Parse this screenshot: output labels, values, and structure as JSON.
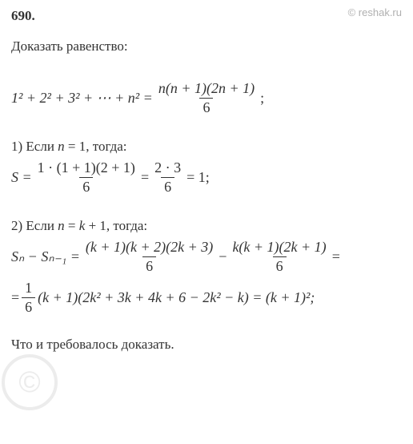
{
  "problem_number": "690.",
  "watermark": "© reshak.ru",
  "task": "Доказать равенство:",
  "main_formula": {
    "lhs": "1² + 2² + 3² + ⋯ + n² =",
    "rhs_num": "n(n + 1)(2n + 1)",
    "rhs_den": "6",
    "trail": ";"
  },
  "step1": {
    "label": "1) Если n = 1, тогда:",
    "prefix": "S =",
    "frac1_num": "1 · (1 + 1)(2 + 1)",
    "frac1_den": "6",
    "mid": "=",
    "frac2_num": "2 · 3",
    "frac2_den": "6",
    "trail": "= 1;"
  },
  "step2": {
    "label": "2) Если n = k + 1, тогда:",
    "line1_prefix": "Sₙ − Sₙ₋₁ =",
    "line1_frac1_num": "(k + 1)(k + 2)(2k + 3)",
    "line1_frac1_den": "6",
    "line1_mid": "−",
    "line1_frac2_num": "k(k + 1)(2k + 1)",
    "line1_frac2_den": "6",
    "line1_trail": "=",
    "line2_prefix": "=",
    "line2_frac_num": "1",
    "line2_frac_den": "6",
    "line2_rest": "(k + 1)(2k² + 3k + 4k + 6 − 2k² − k) = (k + 1)²;"
  },
  "conclusion": "Что и требовалось доказать.",
  "circle_mark": "©",
  "colors": {
    "text": "#333333",
    "background": "#ffffff",
    "watermark": "#b0b0b0",
    "circle": "#dddddd"
  },
  "fonts": {
    "body_size": 17,
    "formula_size": 18
  }
}
